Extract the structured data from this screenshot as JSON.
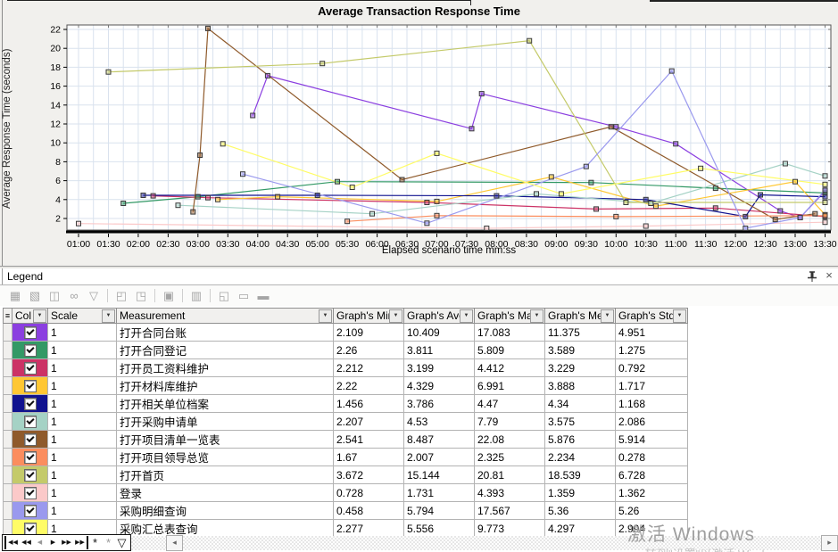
{
  "chart": {
    "title": "Average Transaction Response Time",
    "y_axis_label": "Average Response Time (seconds)",
    "x_axis_label": "Elapsed scenario time mm:ss",
    "x_ticks": [
      "01:00",
      "01:30",
      "02:00",
      "02:30",
      "03:00",
      "03:30",
      "04:00",
      "04:30",
      "05:00",
      "05:30",
      "06:00",
      "06:30",
      "07:00",
      "07:30",
      "08:00",
      "08:30",
      "09:00",
      "09:30",
      "10:00",
      "10:30",
      "11:00",
      "11:30",
      "12:00",
      "12:30",
      "13:00",
      "13:30"
    ],
    "y_ticks": [
      2,
      4,
      6,
      8,
      10,
      12,
      14,
      16,
      18,
      20,
      22
    ]
  },
  "chart_data": {
    "type": "line",
    "title": "Average Transaction Response Time",
    "xlabel": "Elapsed scenario time mm:ss",
    "ylabel": "Average Response Time (seconds)",
    "x_unit_seconds": true,
    "xlim": [
      48,
      816
    ],
    "ylim": [
      0.8,
      22.6
    ],
    "grid": true,
    "series": [
      {
        "name": "打开合同台账",
        "color": "#8b3fe0",
        "points": [
          [
            235,
            12.9
          ],
          [
            250,
            17.1
          ],
          [
            455,
            11.5
          ],
          [
            465,
            15.2
          ],
          [
            600,
            11.7
          ],
          [
            660,
            9.9
          ],
          [
            765,
            2.8
          ],
          [
            785,
            2.1
          ],
          [
            810,
            4.9
          ]
        ]
      },
      {
        "name": "打开合同登记",
        "color": "#339966",
        "points": [
          [
            105,
            3.6
          ],
          [
            180,
            4.3
          ],
          [
            320,
            5.9
          ],
          [
            575,
            5.8
          ],
          [
            700,
            5.2
          ],
          [
            810,
            4.7
          ]
        ]
      },
      {
        "name": "打开员工资料维护",
        "color": "#cc3366",
        "points": [
          [
            135,
            4.4
          ],
          [
            190,
            4.2
          ],
          [
            410,
            3.7
          ],
          [
            580,
            3.0
          ],
          [
            700,
            3.1
          ],
          [
            810,
            2.2
          ]
        ]
      },
      {
        "name": "打开材料库维护",
        "color": "#ffc733",
        "points": [
          [
            200,
            4.0
          ],
          [
            260,
            4.3
          ],
          [
            420,
            3.8
          ],
          [
            535,
            6.4
          ],
          [
            640,
            3.3
          ],
          [
            780,
            5.9
          ],
          [
            810,
            2.4
          ]
        ]
      },
      {
        "name": "打开相关单位档案",
        "color": "#10128f",
        "points": [
          [
            125,
            4.45
          ],
          [
            300,
            4.45
          ],
          [
            480,
            4.4
          ],
          [
            630,
            4.0
          ],
          [
            730,
            2.2
          ],
          [
            745,
            4.5
          ],
          [
            810,
            4.3
          ]
        ]
      },
      {
        "name": "打开采购申请单",
        "color": "#a5d2c5",
        "points": [
          [
            160,
            3.4
          ],
          [
            355,
            2.5
          ],
          [
            520,
            4.6
          ],
          [
            635,
            3.6
          ],
          [
            770,
            7.8
          ],
          [
            810,
            6.5
          ]
        ]
      },
      {
        "name": "打开项目清单一览表",
        "color": "#8f5a2b",
        "points": [
          [
            175,
            2.7
          ],
          [
            182,
            8.7
          ],
          [
            190,
            22.1
          ],
          [
            385,
            6.1
          ],
          [
            595,
            11.7
          ],
          [
            760,
            1.9
          ],
          [
            800,
            2.5
          ]
        ]
      },
      {
        "name": "打开项目领导总览",
        "color": "#fb8d5e",
        "points": [
          [
            330,
            1.7
          ],
          [
            420,
            2.3
          ],
          [
            600,
            2.2
          ],
          [
            810,
            2.3
          ]
        ]
      },
      {
        "name": "打开首页",
        "color": "#c4ca6a",
        "points": [
          [
            90,
            17.5
          ],
          [
            305,
            18.4
          ],
          [
            513,
            20.8
          ],
          [
            610,
            3.7
          ],
          [
            810,
            3.7
          ]
        ]
      },
      {
        "name": "登录",
        "color": "#fbc9c9",
        "points": [
          [
            60,
            1.46
          ],
          [
            470,
            0.85
          ],
          [
            630,
            1.2
          ],
          [
            810,
            1.6
          ]
        ]
      },
      {
        "name": "采购明细查询",
        "color": "#9a99ee",
        "points": [
          [
            225,
            6.7
          ],
          [
            410,
            1.5
          ],
          [
            570,
            7.5
          ],
          [
            656,
            17.6
          ],
          [
            730,
            0.8
          ],
          [
            785,
            2.1
          ],
          [
            810,
            5.0
          ]
        ]
      },
      {
        "name": "采购汇总表查询",
        "color": "#fffc66",
        "points": [
          [
            205,
            9.9
          ],
          [
            335,
            5.3
          ],
          [
            420,
            8.9
          ],
          [
            545,
            4.6
          ],
          [
            685,
            7.3
          ],
          [
            810,
            5.6
          ]
        ]
      }
    ]
  },
  "legend": {
    "title": "Legend",
    "pin_icon": "pin",
    "close_icon": "×",
    "toolbar_icons": [
      {
        "name": "configure-measurements-icon",
        "glyph": "▦"
      },
      {
        "name": "configure-scale-icon",
        "glyph": "▧"
      },
      {
        "name": "show-hide-measurement-icon",
        "glyph": "◫"
      },
      {
        "name": "view-description-icon",
        "glyph": "∞"
      },
      {
        "name": "filter-measurement-icon",
        "glyph": "▽"
      },
      {
        "name": "sort-icon",
        "glyph": "◰"
      },
      {
        "name": "copy-icon",
        "glyph": "◳"
      },
      {
        "name": "stamp-icon",
        "glyph": "▣"
      },
      {
        "name": "grid-icon",
        "glyph": "▥"
      },
      {
        "name": "export-icon",
        "glyph": "◱"
      },
      {
        "name": "save-template-icon",
        "glyph": "▭"
      },
      {
        "name": "raw-data-icon",
        "glyph": "▬"
      }
    ],
    "toolbar_separators_after": [
      4,
      6,
      7,
      8
    ],
    "table": {
      "corner_icon": "≡",
      "headers": [
        "Col",
        "Scale",
        "Measurement",
        "Graph's Mini",
        "Graph's Ave",
        "Graph's Max",
        "Graph's Med",
        "Graph's Std."
      ],
      "rows": [
        {
          "color": "#8b3fe0",
          "checked": true,
          "scale": "1",
          "name": "打开合同台账",
          "min": "2.109",
          "avg": "10.409",
          "max": "17.083",
          "med": "11.375",
          "std": "4.951"
        },
        {
          "color": "#339966",
          "checked": true,
          "scale": "1",
          "name": "打开合同登记",
          "min": "2.26",
          "avg": "3.811",
          "max": "5.809",
          "med": "3.589",
          "std": "1.275"
        },
        {
          "color": "#cc3366",
          "checked": true,
          "scale": "1",
          "name": "打开员工资料维护",
          "min": "2.212",
          "avg": "3.199",
          "max": "4.412",
          "med": "3.229",
          "std": "0.792"
        },
        {
          "color": "#ffc733",
          "checked": true,
          "scale": "1",
          "name": "打开材料库维护",
          "min": "2.22",
          "avg": "4.329",
          "max": "6.991",
          "med": "3.888",
          "std": "1.717"
        },
        {
          "color": "#10128f",
          "checked": true,
          "scale": "1",
          "name": "打开相关单位档案",
          "min": "1.456",
          "avg": "3.786",
          "max": "4.47",
          "med": "4.34",
          "std": "1.168"
        },
        {
          "color": "#a5d2c5",
          "checked": true,
          "scale": "1",
          "name": "打开采购申请单",
          "min": "2.207",
          "avg": "4.53",
          "max": "7.79",
          "med": "3.575",
          "std": "2.086"
        },
        {
          "color": "#8f5a2b",
          "checked": true,
          "scale": "1",
          "name": "打开项目清单一览表",
          "min": "2.541",
          "avg": "8.487",
          "max": "22.08",
          "med": "5.876",
          "std": "5.914"
        },
        {
          "color": "#fb8d5e",
          "checked": true,
          "scale": "1",
          "name": "打开项目领导总览",
          "min": "1.67",
          "avg": "2.007",
          "max": "2.325",
          "med": "2.234",
          "std": "0.278"
        },
        {
          "color": "#c4ca6a",
          "checked": true,
          "scale": "1",
          "name": "打开首页",
          "min": "3.672",
          "avg": "15.144",
          "max": "20.81",
          "med": "18.539",
          "std": "6.728"
        },
        {
          "color": "#fbc9c9",
          "checked": true,
          "scale": "1",
          "name": "登录",
          "min": "0.728",
          "avg": "1.731",
          "max": "4.393",
          "med": "1.359",
          "std": "1.362"
        },
        {
          "color": "#9a99ee",
          "checked": true,
          "scale": "1",
          "name": "采购明细查询",
          "min": "0.458",
          "avg": "5.794",
          "max": "17.567",
          "med": "5.36",
          "std": "5.26"
        },
        {
          "color": "#fffc66",
          "checked": true,
          "scale": "1",
          "name": "采购汇总表查询",
          "min": "2.277",
          "avg": "5.556",
          "max": "9.773",
          "med": "4.297",
          "std": "2.994"
        }
      ]
    }
  },
  "bottom": {
    "nav_icons": [
      {
        "name": "first-record-button",
        "glyph": "◀◀",
        "bar": "left"
      },
      {
        "name": "fast-backward-button",
        "glyph": "◀◀"
      },
      {
        "name": "previous-record-button",
        "glyph": "◀",
        "dim": true
      },
      {
        "name": "next-record-button",
        "glyph": "▶"
      },
      {
        "name": "fast-forward-button",
        "glyph": "▶▶"
      },
      {
        "name": "last-record-button",
        "glyph": "▶▶",
        "bar": "right"
      },
      {
        "name": "refresh-button",
        "glyph": "*",
        "star": true
      },
      {
        "name": "cancel-refresh-button",
        "glyph": "*",
        "star": true,
        "dim": true
      },
      {
        "name": "filter-button",
        "glyph": "▽",
        "star": true
      }
    ],
    "scroll_left_glyph": "◂",
    "scroll_right_glyph": "▸",
    "watermark_line1": "激活 Windows",
    "watermark_line2": "转到\"设置\"以激活 Wind"
  }
}
